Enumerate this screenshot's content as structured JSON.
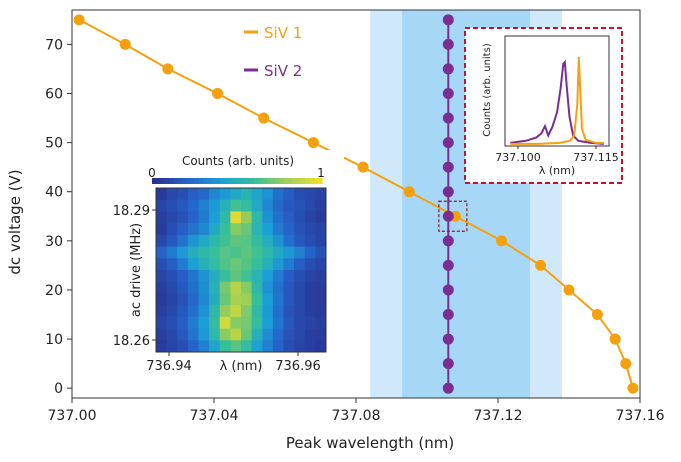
{
  "chart_data": [
    {
      "type": "line",
      "xlabel": "Peak wavelength (nm)",
      "ylabel": "dc voltage (V)",
      "xlim": [
        737.0,
        737.16
      ],
      "ylim": [
        -2,
        77
      ],
      "xticks": [
        737.0,
        737.04,
        737.08,
        737.12,
        737.16
      ],
      "xtick_labels": [
        "737.00",
        "737.04",
        "737.08",
        "737.12",
        "737.16"
      ],
      "yticks": [
        0,
        10,
        20,
        30,
        40,
        50,
        60,
        70
      ],
      "ytick_labels": [
        "0",
        "10",
        "20",
        "30",
        "40",
        "50",
        "60",
        "70"
      ],
      "legend_position": "top-center",
      "bands": [
        {
          "x0": 737.084,
          "x1": 737.138,
          "color": "#cfe9fb"
        },
        {
          "x0": 737.093,
          "x1": 737.129,
          "color": "#a7d7f7"
        }
      ],
      "series": [
        {
          "name": "SiV 1",
          "color": "#f5a10f",
          "points": [
            [
              737.002,
              75
            ],
            [
              737.015,
              70
            ],
            [
              737.027,
              65
            ],
            [
              737.041,
              60
            ],
            [
              737.054,
              55
            ],
            [
              737.068,
              50
            ],
            [
              737.082,
              45
            ],
            [
              737.095,
              40
            ],
            [
              737.108,
              35
            ],
            [
              737.121,
              30
            ],
            [
              737.132,
              25
            ],
            [
              737.14,
              20
            ],
            [
              737.148,
              15
            ],
            [
              737.153,
              10
            ],
            [
              737.156,
              5
            ],
            [
              737.158,
              0
            ]
          ]
        },
        {
          "name": "SiV 2",
          "color": "#7a2e90",
          "points": [
            [
              737.106,
              75
            ],
            [
              737.106,
              70
            ],
            [
              737.106,
              65
            ],
            [
              737.106,
              60
            ],
            [
              737.106,
              55
            ],
            [
              737.106,
              50
            ],
            [
              737.106,
              45
            ],
            [
              737.106,
              40
            ],
            [
              737.106,
              35
            ],
            [
              737.106,
              30
            ],
            [
              737.106,
              25
            ],
            [
              737.106,
              20
            ],
            [
              737.106,
              15
            ],
            [
              737.106,
              10
            ],
            [
              737.106,
              5
            ],
            [
              737.106,
              0
            ]
          ]
        }
      ]
    },
    {
      "type": "line",
      "xlabel": "λ (nm)",
      "ylabel": "Counts (arb. units)",
      "xlim": [
        737.0975,
        737.1175
      ],
      "ylim": [
        0,
        1.05
      ],
      "xtick_labels": [
        "737.100",
        "737.115"
      ],
      "xticks": [
        737.1,
        737.115
      ],
      "series": [
        {
          "color": "#7a2e90",
          "points": [
            [
              737.0985,
              0.03
            ],
            [
              737.1015,
              0.05
            ],
            [
              737.1035,
              0.08
            ],
            [
              737.1045,
              0.12
            ],
            [
              737.1052,
              0.19
            ],
            [
              737.1058,
              0.1
            ],
            [
              737.1066,
              0.18
            ],
            [
              737.1075,
              0.32
            ],
            [
              737.1082,
              0.55
            ],
            [
              737.1087,
              0.78
            ],
            [
              737.109,
              0.8
            ],
            [
              737.1094,
              0.55
            ],
            [
              737.1099,
              0.28
            ],
            [
              737.1106,
              0.1
            ],
            [
              737.1116,
              0.05
            ],
            [
              737.114,
              0.03
            ],
            [
              737.1165,
              0.02
            ]
          ]
        },
        {
          "color": "#f5a10f",
          "points": [
            [
              737.0985,
              0.02
            ],
            [
              737.104,
              0.02
            ],
            [
              737.108,
              0.03
            ],
            [
              737.11,
              0.05
            ],
            [
              737.1108,
              0.1
            ],
            [
              737.1114,
              0.4
            ],
            [
              737.1117,
              0.85
            ],
            [
              737.1119,
              0.6
            ],
            [
              737.1123,
              0.16
            ],
            [
              737.113,
              0.06
            ],
            [
              737.115,
              0.03
            ],
            [
              737.1165,
              0.03
            ]
          ]
        }
      ]
    },
    {
      "type": "heatmap",
      "xlabel": "λ (nm)",
      "ylabel": "ac drive (MHz)",
      "colorbar_label": "Counts (arb. units)",
      "colorbar_min_label": "0",
      "colorbar_max_label": "1",
      "xtick_labels": [
        "736.94",
        "736.96"
      ],
      "ytick_labels": [
        "18.29",
        "18.26"
      ],
      "colorscale": [
        "#2a2f8f",
        "#2563c9",
        "#1c9fd6",
        "#35bf9a",
        "#9fcf55",
        "#f2df2a"
      ],
      "rows": [
        [
          0.05,
          0.1,
          0.12,
          0.18,
          0.22,
          0.32,
          0.38,
          0.45,
          0.52,
          0.44,
          0.36,
          0.24,
          0.18,
          0.12,
          0.1,
          0.08
        ],
        [
          0.08,
          0.12,
          0.16,
          0.22,
          0.3,
          0.38,
          0.5,
          0.62,
          0.58,
          0.46,
          0.32,
          0.22,
          0.16,
          0.14,
          0.1,
          0.06
        ],
        [
          0.06,
          0.1,
          0.14,
          0.2,
          0.28,
          0.4,
          0.55,
          0.95,
          0.78,
          0.55,
          0.36,
          0.24,
          0.18,
          0.12,
          0.08,
          0.05
        ],
        [
          0.05,
          0.12,
          0.18,
          0.25,
          0.32,
          0.45,
          0.6,
          0.75,
          0.7,
          0.52,
          0.4,
          0.28,
          0.2,
          0.14,
          0.1,
          0.08
        ],
        [
          0.1,
          0.16,
          0.25,
          0.36,
          0.45,
          0.55,
          0.62,
          0.68,
          0.66,
          0.58,
          0.48,
          0.36,
          0.24,
          0.16,
          0.12,
          0.08
        ],
        [
          0.2,
          0.28,
          0.38,
          0.48,
          0.55,
          0.6,
          0.66,
          0.64,
          0.68,
          0.62,
          0.55,
          0.46,
          0.38,
          0.3,
          0.2,
          0.14
        ],
        [
          0.12,
          0.18,
          0.28,
          0.4,
          0.5,
          0.58,
          0.65,
          0.7,
          0.66,
          0.6,
          0.5,
          0.38,
          0.28,
          0.18,
          0.12,
          0.08
        ],
        [
          0.08,
          0.12,
          0.18,
          0.26,
          0.36,
          0.48,
          0.6,
          0.68,
          0.62,
          0.52,
          0.4,
          0.28,
          0.18,
          0.12,
          0.08,
          0.06
        ],
        [
          0.06,
          0.1,
          0.16,
          0.24,
          0.34,
          0.5,
          0.72,
          0.85,
          0.75,
          0.55,
          0.36,
          0.24,
          0.16,
          0.1,
          0.06,
          0.05
        ],
        [
          0.05,
          0.08,
          0.14,
          0.22,
          0.32,
          0.48,
          0.7,
          0.82,
          0.8,
          0.6,
          0.4,
          0.26,
          0.16,
          0.1,
          0.06,
          0.05
        ],
        [
          0.06,
          0.1,
          0.16,
          0.24,
          0.36,
          0.55,
          0.78,
          0.88,
          0.74,
          0.56,
          0.38,
          0.24,
          0.14,
          0.1,
          0.06,
          0.05
        ],
        [
          0.08,
          0.12,
          0.18,
          0.28,
          0.4,
          0.58,
          0.92,
          0.75,
          0.72,
          0.58,
          0.4,
          0.26,
          0.16,
          0.1,
          0.08,
          0.06
        ],
        [
          0.06,
          0.1,
          0.16,
          0.26,
          0.38,
          0.55,
          0.76,
          0.86,
          0.7,
          0.5,
          0.34,
          0.22,
          0.14,
          0.1,
          0.06,
          0.05
        ],
        [
          0.05,
          0.08,
          0.12,
          0.2,
          0.3,
          0.44,
          0.6,
          0.66,
          0.58,
          0.42,
          0.3,
          0.2,
          0.12,
          0.08,
          0.06,
          0.04
        ]
      ]
    }
  ]
}
